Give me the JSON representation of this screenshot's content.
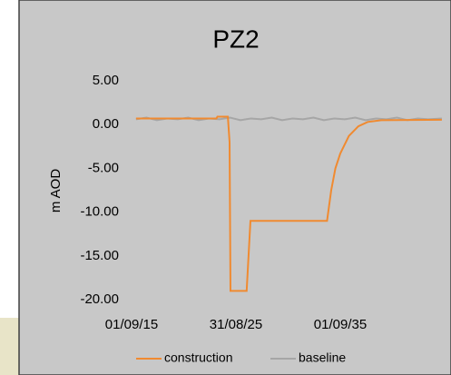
{
  "chart_data": {
    "type": "line",
    "title": "PZ2",
    "ylabel": "m AOD",
    "xlim": [
      2015.67,
      2045.67
    ],
    "xticks": [
      {
        "value": 2015.67,
        "label": "01/09/15"
      },
      {
        "value": 2025.67,
        "label": "31/08/25"
      },
      {
        "value": 2035.67,
        "label": "01/09/35"
      }
    ],
    "ylim": [
      -20,
      5
    ],
    "yticks": [
      {
        "value": 5,
        "label": "5.00"
      },
      {
        "value": 0,
        "label": "0.00"
      },
      {
        "value": -5,
        "label": "-5.00"
      },
      {
        "value": -10,
        "label": "-10.00"
      },
      {
        "value": -15,
        "label": "-15.00"
      },
      {
        "value": -20,
        "label": "-20.00"
      }
    ],
    "legend": "bottom",
    "series": [
      {
        "name": "construction",
        "color": "#f08a30",
        "x": [
          2016.1,
          2023.8,
          2023.9,
          2024.9,
          2025.06,
          2025.15,
          2026.7,
          2027.06,
          2034.4,
          2034.8,
          2035.2,
          2035.67,
          2036.5,
          2037.4,
          2038.3,
          2039.6,
          2045.4
        ],
        "values": [
          0.7,
          0.7,
          0.9,
          0.9,
          -2,
          -19,
          -19,
          -11,
          -11,
          -7.5,
          -5,
          -3.3,
          -1.3,
          -0.2,
          0.3,
          0.5,
          0.55
        ]
      },
      {
        "name": "baseline",
        "color": "#a6a6a6",
        "x": [
          2016.1,
          2017.1,
          2018.1,
          2019.1,
          2020.1,
          2021.1,
          2022.1,
          2023.1,
          2024.1,
          2025.1,
          2026.1,
          2027.1,
          2028.1,
          2029.1,
          2030.1,
          2031.1,
          2032.1,
          2033.1,
          2034.1,
          2035.1,
          2036.1,
          2037.1,
          2038.1,
          2039.1,
          2040.1,
          2041.1,
          2042.1,
          2043.1,
          2044.1,
          2045.4
        ],
        "values": [
          0.6,
          0.8,
          0.5,
          0.7,
          0.6,
          0.8,
          0.5,
          0.7,
          0.6,
          0.8,
          0.5,
          0.7,
          0.6,
          0.8,
          0.5,
          0.7,
          0.6,
          0.8,
          0.5,
          0.7,
          0.6,
          0.8,
          0.5,
          0.7,
          0.6,
          0.8,
          0.5,
          0.7,
          0.6,
          0.7
        ]
      }
    ]
  }
}
